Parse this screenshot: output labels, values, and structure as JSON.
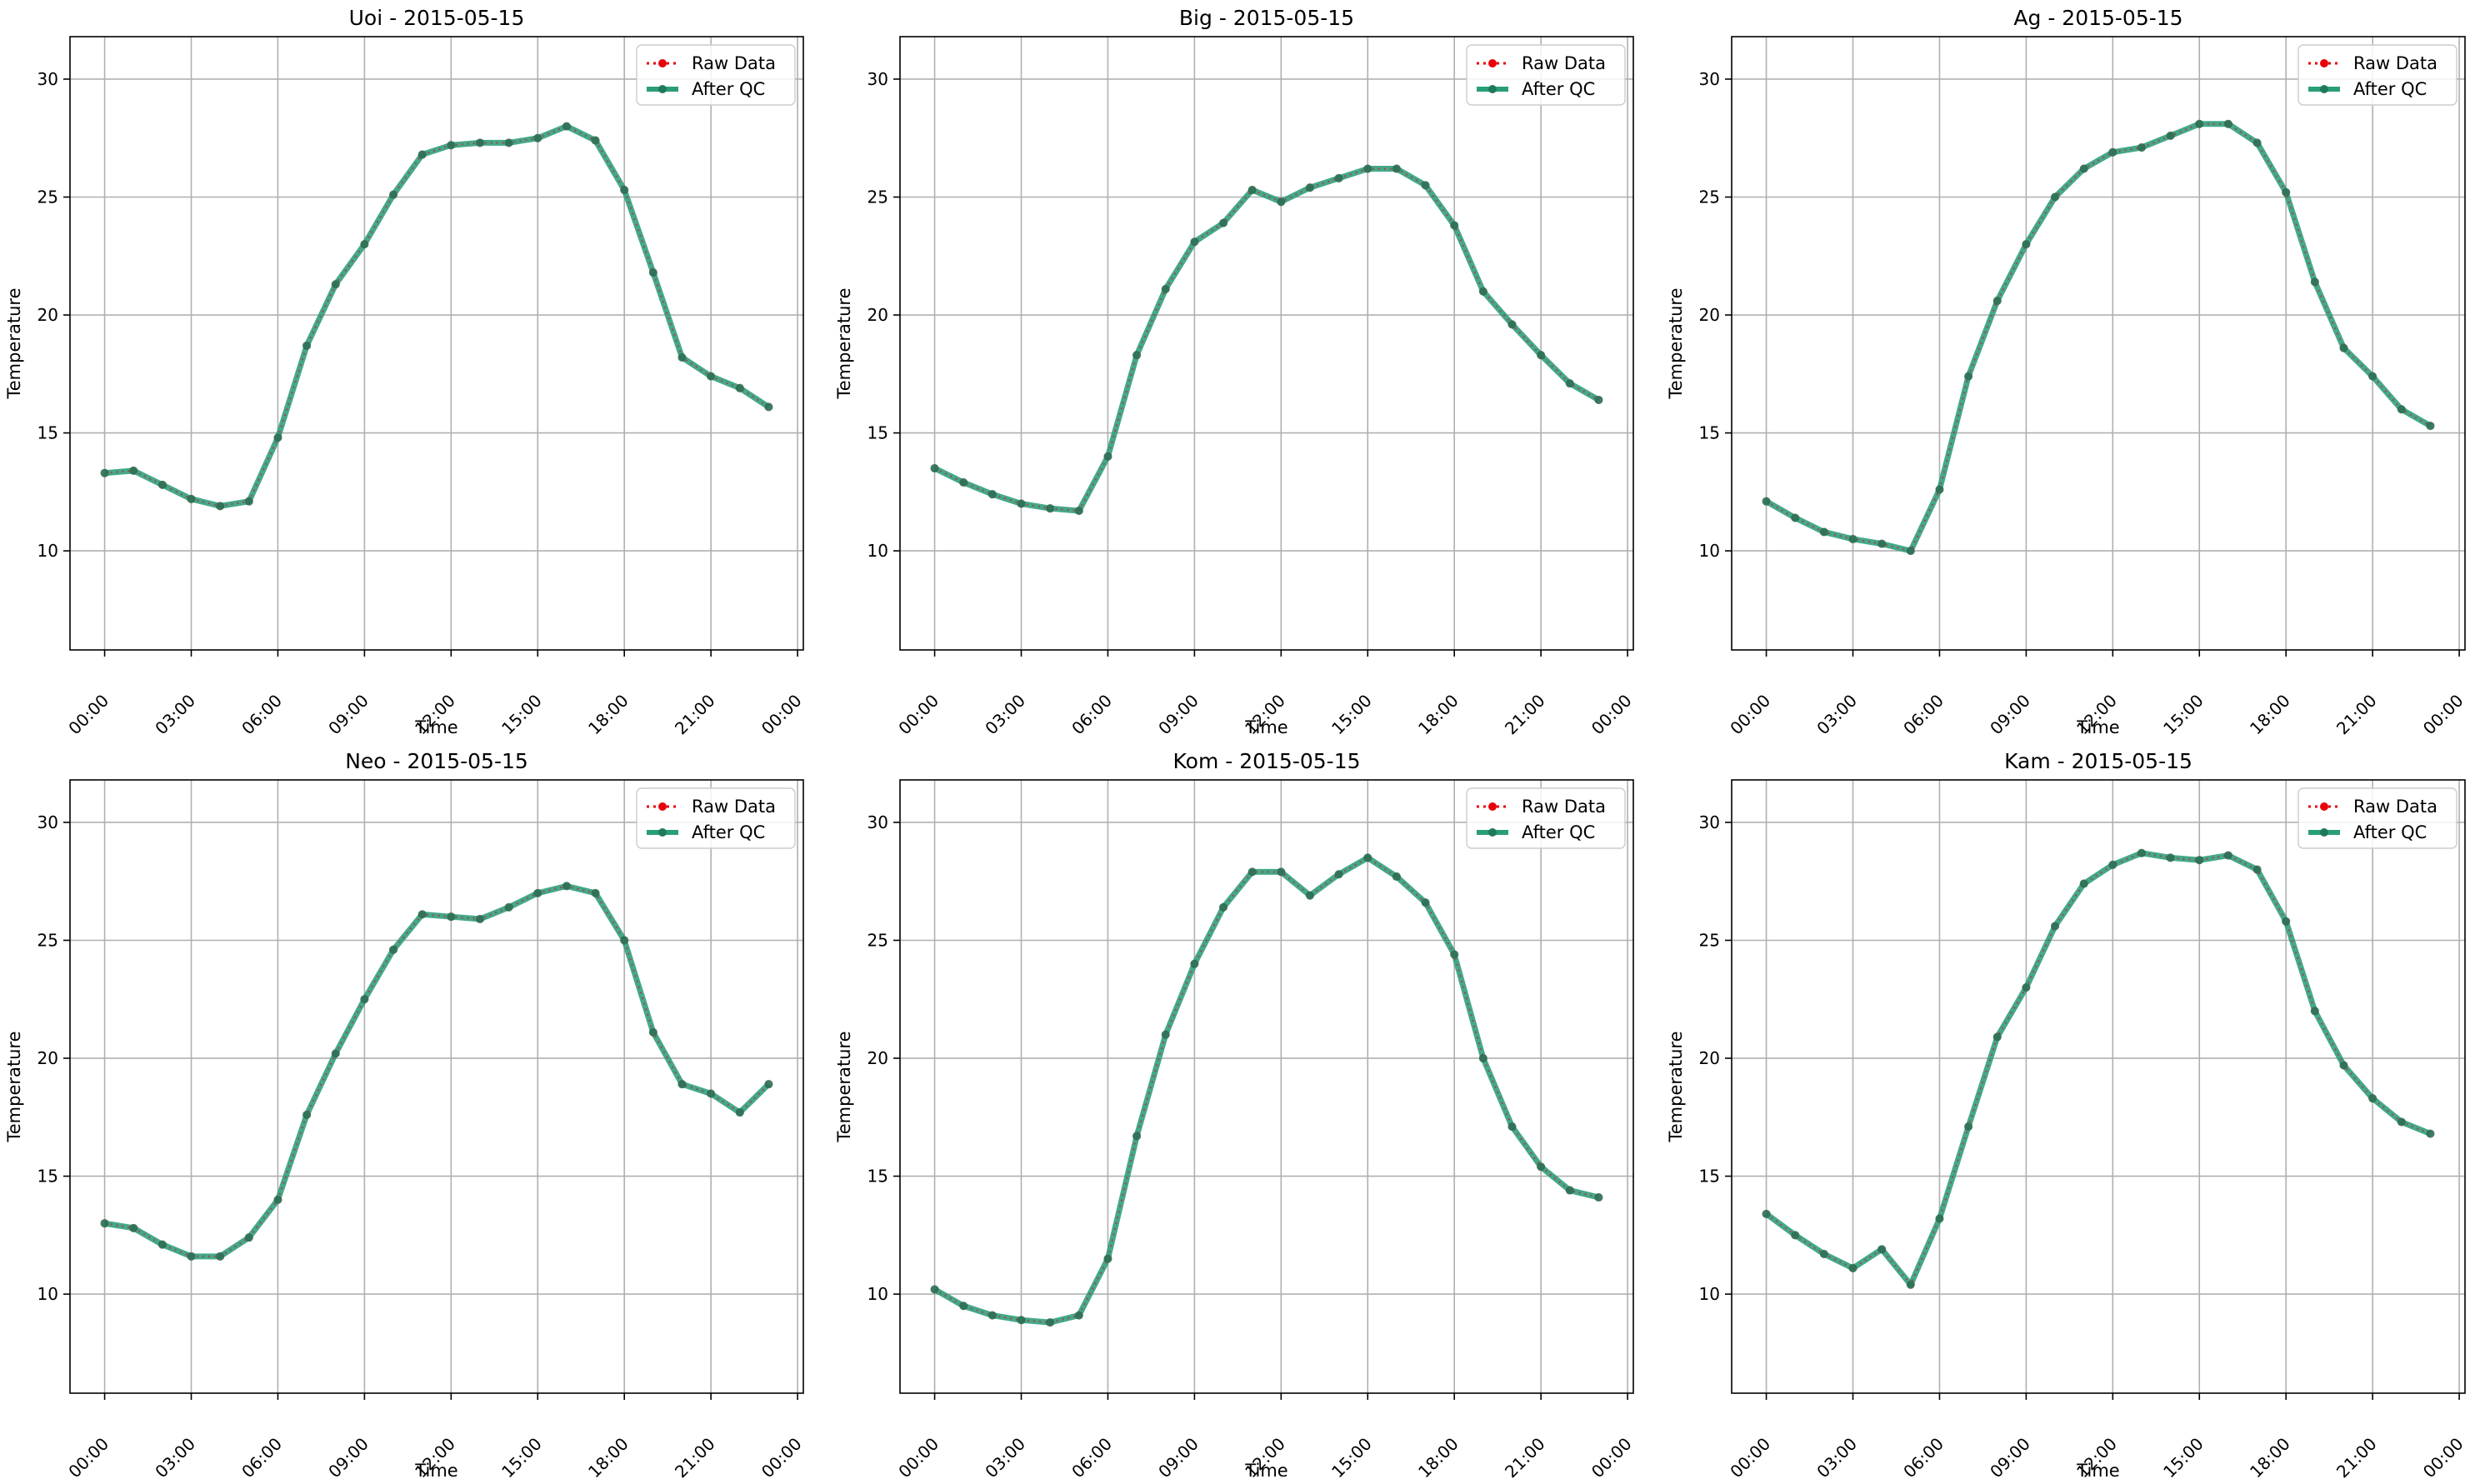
{
  "colors": {
    "raw": "#e8000b",
    "qc": "#2a9d7a",
    "qc_marker": "#1f7a5c",
    "grid": "#b0b0b0",
    "axis": "#000000"
  },
  "chart_data": [
    {
      "type": "line",
      "title": "Uoi - 2015-05-15",
      "xlabel": "Time",
      "ylabel": "Temperature",
      "x_tick_labels": [
        "00:00",
        "03:00",
        "06:00",
        "09:00",
        "12:00",
        "15:00",
        "18:00",
        "21:00",
        "00:00"
      ],
      "x_hours": [
        0,
        1,
        2,
        3,
        4,
        5,
        6,
        7,
        8,
        9,
        10,
        11,
        12,
        13,
        14,
        15,
        16,
        17,
        18,
        19,
        20,
        21,
        22,
        23
      ],
      "xlim_hours": [
        -1.2,
        24.2
      ],
      "ylim": [
        5.8,
        31.8
      ],
      "y_ticks": [
        10,
        15,
        20,
        25,
        30
      ],
      "grid": true,
      "legend_position": "top-right",
      "series": [
        {
          "name": "Raw Data",
          "values": [
            13.3,
            13.4,
            12.8,
            12.2,
            11.9,
            12.1,
            14.8,
            18.7,
            21.3,
            23.0,
            25.1,
            26.8,
            27.2,
            27.3,
            27.3,
            27.5,
            28.0,
            27.4,
            25.3,
            21.8,
            18.2,
            17.4,
            16.9,
            16.1
          ]
        },
        {
          "name": "After QC",
          "values": [
            13.3,
            13.4,
            12.8,
            12.2,
            11.9,
            12.1,
            14.8,
            18.7,
            21.3,
            23.0,
            25.1,
            26.8,
            27.2,
            27.3,
            27.3,
            27.5,
            28.0,
            27.4,
            25.3,
            21.8,
            18.2,
            17.4,
            16.9,
            16.1
          ]
        }
      ]
    },
    {
      "type": "line",
      "title": "Big - 2015-05-15",
      "xlabel": "Time",
      "ylabel": "Temperature",
      "x_tick_labels": [
        "00:00",
        "03:00",
        "06:00",
        "09:00",
        "12:00",
        "15:00",
        "18:00",
        "21:00",
        "00:00"
      ],
      "x_hours": [
        0,
        1,
        2,
        3,
        4,
        5,
        6,
        7,
        8,
        9,
        10,
        11,
        12,
        13,
        14,
        15,
        16,
        17,
        18,
        19,
        20,
        21,
        22,
        23
      ],
      "xlim_hours": [
        -1.2,
        24.2
      ],
      "ylim": [
        5.8,
        31.8
      ],
      "y_ticks": [
        10,
        15,
        20,
        25,
        30
      ],
      "grid": true,
      "legend_position": "top-right",
      "series": [
        {
          "name": "Raw Data",
          "values": [
            13.5,
            12.9,
            12.4,
            12.0,
            11.8,
            11.7,
            14.0,
            18.3,
            21.1,
            23.1,
            23.9,
            25.3,
            24.8,
            25.4,
            25.8,
            26.2,
            26.2,
            25.5,
            23.8,
            21.0,
            19.6,
            18.3,
            17.1,
            16.4
          ]
        },
        {
          "name": "After QC",
          "values": [
            13.5,
            12.9,
            12.4,
            12.0,
            11.8,
            11.7,
            14.0,
            18.3,
            21.1,
            23.1,
            23.9,
            25.3,
            24.8,
            25.4,
            25.8,
            26.2,
            26.2,
            25.5,
            23.8,
            21.0,
            19.6,
            18.3,
            17.1,
            16.4
          ]
        }
      ]
    },
    {
      "type": "line",
      "title": "Ag - 2015-05-15",
      "xlabel": "Time",
      "ylabel": "Temperature",
      "x_tick_labels": [
        "00:00",
        "03:00",
        "06:00",
        "09:00",
        "12:00",
        "15:00",
        "18:00",
        "21:00",
        "00:00"
      ],
      "x_hours": [
        0,
        1,
        2,
        3,
        4,
        5,
        6,
        7,
        8,
        9,
        10,
        11,
        12,
        13,
        14,
        15,
        16,
        17,
        18,
        19,
        20,
        21,
        22,
        23
      ],
      "xlim_hours": [
        -1.2,
        24.2
      ],
      "ylim": [
        5.8,
        31.8
      ],
      "y_ticks": [
        10,
        15,
        20,
        25,
        30
      ],
      "grid": true,
      "legend_position": "top-right",
      "series": [
        {
          "name": "Raw Data",
          "values": [
            12.1,
            11.4,
            10.8,
            10.5,
            10.3,
            10.0,
            12.6,
            17.4,
            20.6,
            23.0,
            25.0,
            26.2,
            26.9,
            27.1,
            27.6,
            28.1,
            28.1,
            27.3,
            25.2,
            21.4,
            18.6,
            17.4,
            16.0,
            15.3
          ]
        },
        {
          "name": "After QC",
          "values": [
            12.1,
            11.4,
            10.8,
            10.5,
            10.3,
            10.0,
            12.6,
            17.4,
            20.6,
            23.0,
            25.0,
            26.2,
            26.9,
            27.1,
            27.6,
            28.1,
            28.1,
            27.3,
            25.2,
            21.4,
            18.6,
            17.4,
            16.0,
            15.3
          ]
        }
      ]
    },
    {
      "type": "line",
      "title": "Neo - 2015-05-15",
      "xlabel": "Time",
      "ylabel": "Temperature",
      "x_tick_labels": [
        "00:00",
        "03:00",
        "06:00",
        "09:00",
        "12:00",
        "15:00",
        "18:00",
        "21:00",
        "00:00"
      ],
      "x_hours": [
        0,
        1,
        2,
        3,
        4,
        5,
        6,
        7,
        8,
        9,
        10,
        11,
        12,
        13,
        14,
        15,
        16,
        17,
        18,
        19,
        20,
        21,
        22,
        23
      ],
      "xlim_hours": [
        -1.2,
        24.2
      ],
      "ylim": [
        5.8,
        31.8
      ],
      "y_ticks": [
        10,
        15,
        20,
        25,
        30
      ],
      "grid": true,
      "legend_position": "top-right",
      "series": [
        {
          "name": "Raw Data",
          "values": [
            13.0,
            12.8,
            12.1,
            11.6,
            11.6,
            12.4,
            14.0,
            17.6,
            20.2,
            22.5,
            24.6,
            26.1,
            26.0,
            25.9,
            26.4,
            27.0,
            27.3,
            27.0,
            25.0,
            21.1,
            18.9,
            18.5,
            17.7,
            18.9
          ]
        },
        {
          "name": "After QC",
          "values": [
            13.0,
            12.8,
            12.1,
            11.6,
            11.6,
            12.4,
            14.0,
            17.6,
            20.2,
            22.5,
            24.6,
            26.1,
            26.0,
            25.9,
            26.4,
            27.0,
            27.3,
            27.0,
            25.0,
            21.1,
            18.9,
            18.5,
            17.7,
            18.9
          ]
        }
      ]
    },
    {
      "type": "line",
      "title": "Kom - 2015-05-15",
      "xlabel": "Time",
      "ylabel": "Temperature",
      "x_tick_labels": [
        "00:00",
        "03:00",
        "06:00",
        "09:00",
        "12:00",
        "15:00",
        "18:00",
        "21:00",
        "00:00"
      ],
      "x_hours": [
        0,
        1,
        2,
        3,
        4,
        5,
        6,
        7,
        8,
        9,
        10,
        11,
        12,
        13,
        14,
        15,
        16,
        17,
        18,
        19,
        20,
        21,
        22,
        23
      ],
      "xlim_hours": [
        -1.2,
        24.2
      ],
      "ylim": [
        5.8,
        31.8
      ],
      "y_ticks": [
        10,
        15,
        20,
        25,
        30
      ],
      "grid": true,
      "legend_position": "top-right",
      "series": [
        {
          "name": "Raw Data",
          "values": [
            10.2,
            9.5,
            9.1,
            8.9,
            8.8,
            9.1,
            11.5,
            16.7,
            21.0,
            24.0,
            26.4,
            27.9,
            27.9,
            26.9,
            27.8,
            28.5,
            27.7,
            26.6,
            24.4,
            20.0,
            17.1,
            15.4,
            14.4,
            14.1
          ]
        },
        {
          "name": "After QC",
          "values": [
            10.2,
            9.5,
            9.1,
            8.9,
            8.8,
            9.1,
            11.5,
            16.7,
            21.0,
            24.0,
            26.4,
            27.9,
            27.9,
            26.9,
            27.8,
            28.5,
            27.7,
            26.6,
            24.4,
            20.0,
            17.1,
            15.4,
            14.4,
            14.1
          ]
        }
      ]
    },
    {
      "type": "line",
      "title": "Kam - 2015-05-15",
      "xlabel": "Time",
      "ylabel": "Temperature",
      "x_tick_labels": [
        "00:00",
        "03:00",
        "06:00",
        "09:00",
        "12:00",
        "15:00",
        "18:00",
        "21:00",
        "00:00"
      ],
      "x_hours": [
        0,
        1,
        2,
        3,
        4,
        5,
        6,
        7,
        8,
        9,
        10,
        11,
        12,
        13,
        14,
        15,
        16,
        17,
        18,
        19,
        20,
        21,
        22,
        23
      ],
      "xlim_hours": [
        -1.2,
        24.2
      ],
      "ylim": [
        5.8,
        31.8
      ],
      "y_ticks": [
        10,
        15,
        20,
        25,
        30
      ],
      "grid": true,
      "legend_position": "top-right",
      "series": [
        {
          "name": "Raw Data",
          "values": [
            13.4,
            12.5,
            11.7,
            11.1,
            11.9,
            10.4,
            13.2,
            17.1,
            20.9,
            23.0,
            25.6,
            27.4,
            28.2,
            28.7,
            28.5,
            28.4,
            28.6,
            28.0,
            25.8,
            22.0,
            19.7,
            18.3,
            17.3,
            16.8
          ]
        },
        {
          "name": "After QC",
          "values": [
            13.4,
            12.5,
            11.7,
            11.1,
            11.9,
            10.4,
            13.2,
            17.1,
            20.9,
            23.0,
            25.6,
            27.4,
            28.2,
            28.7,
            28.5,
            28.4,
            28.6,
            28.0,
            25.8,
            22.0,
            19.7,
            18.3,
            17.3,
            16.8
          ]
        }
      ]
    }
  ]
}
